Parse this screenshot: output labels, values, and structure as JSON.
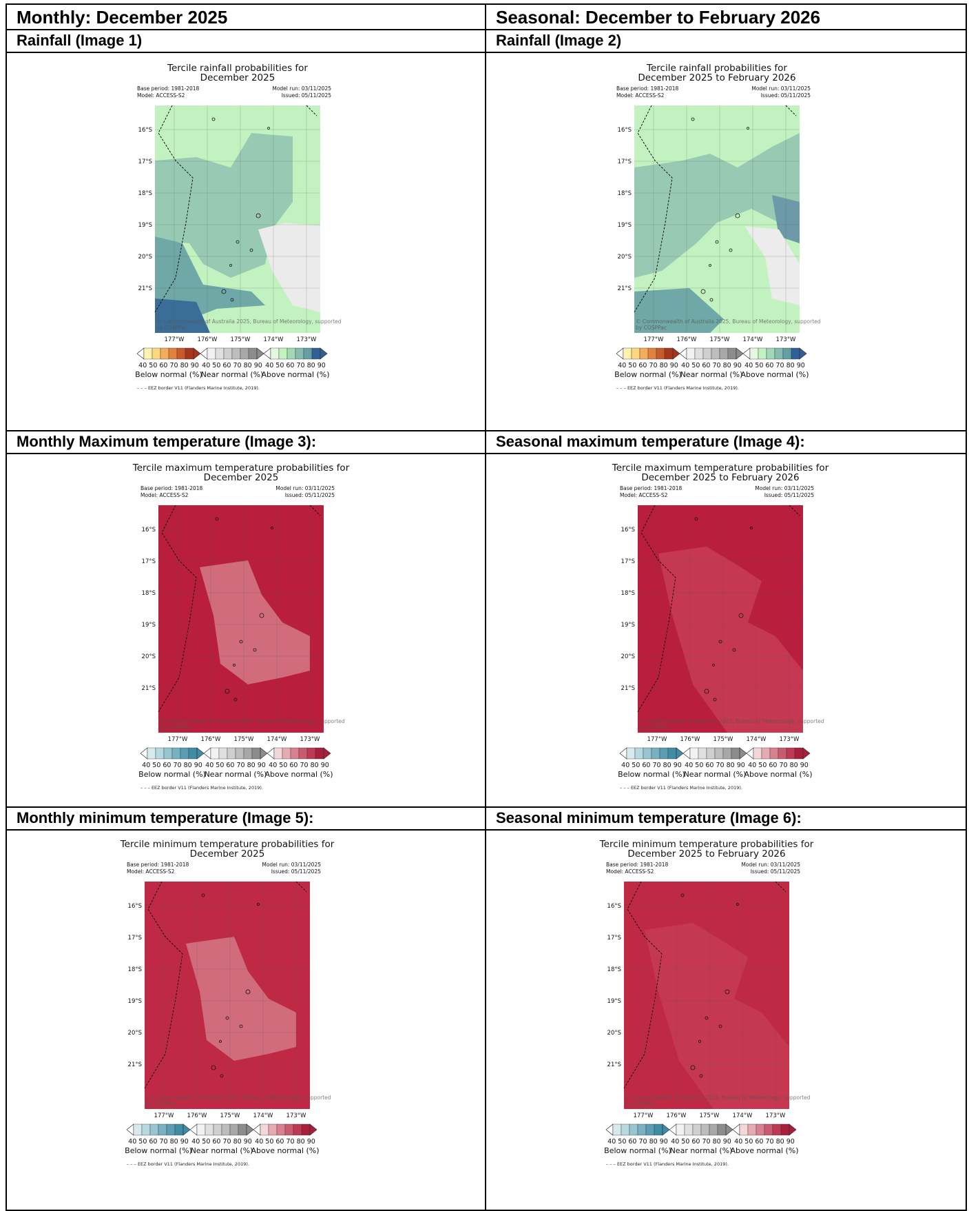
{
  "header": {
    "left_title": "Monthly: December 2025",
    "right_title": "Seasonal: December to February 2026"
  },
  "sections": {
    "rainfall_monthly": "Rainfall (Image 1)",
    "rainfall_seasonal": "Rainfall (Image 2)",
    "tmax_monthly": "Monthly Maximum temperature (Image 3):",
    "tmax_seasonal": "Seasonal maximum temperature (Image 4):",
    "tmin_monthly": "Monthly minimum temperature (Image 5):",
    "tmin_seasonal": "Seasonal minimum temperature (Image 6):"
  },
  "maps": [
    {
      "title1": "Tercile rainfall probabilities for",
      "title2": "December 2025",
      "kind": "rain_m"
    },
    {
      "title1": "Tercile rainfall probabilities for",
      "title2": "December 2025 to February 2026",
      "kind": "rain_s"
    },
    {
      "title1": "Tercile maximum temperature probabilities for",
      "title2": "December 2025",
      "kind": "tmax_m"
    },
    {
      "title1": "Tercile maximum temperature probabilities for",
      "title2": "December 2025 to February 2026",
      "kind": "tmax_s"
    },
    {
      "title1": "Tercile minimum temperature probabilities for",
      "title2": "December 2025",
      "kind": "tmin_m"
    },
    {
      "title1": "Tercile minimum temperature probabilities for",
      "title2": "December 2025 to February 2026",
      "kind": "tmin_s"
    }
  ],
  "common": {
    "base_period": "Base period: 1981-2018",
    "model": "Model: ACCESS-S2",
    "model_run": "Model run: 03/11/2025",
    "issued": "Issued: 05/11/2025",
    "lat_ticks": [
      "16°S",
      "17°S",
      "18°S",
      "19°S",
      "20°S",
      "21°S"
    ],
    "lon_ticks": [
      "177°W",
      "176°W",
      "175°W",
      "174°W",
      "173°W"
    ],
    "copyright_line1": "© Commonwealth of Australia 2025, Bureau of Meteorology, supported",
    "copyright_line2": "by COSPPac",
    "cb_numbers": "40 50 60 70 80 90",
    "cb_below": "Below normal (%)",
    "cb_near": "Near normal (%)",
    "cb_above": "Above normal (%)",
    "eez": "– – – EEZ border V11 (Flanders Marine Institute, 2019)."
  },
  "colors": {
    "rain_below": [
      "#fff3b0",
      "#fdd680",
      "#f4ad5c",
      "#e08140",
      "#c85a2a",
      "#a8361b"
    ],
    "rain_above": [
      "#e4f8e0",
      "#c2f2c0",
      "#a3d8b6",
      "#86bcae",
      "#62a0a4",
      "#2f5f96"
    ],
    "near": [
      "#f2f2f2",
      "#e0e0e0",
      "#cfcfcf",
      "#bdbdbd",
      "#a8a8a8",
      "#8c8c8c"
    ],
    "temp_below": [
      "#d6eaee",
      "#b6d8e0",
      "#97c5d1",
      "#77b1c2",
      "#5a9eb3",
      "#3e8ca6"
    ],
    "temp_above": [
      "#f3d6da",
      "#e6aab3",
      "#d8808f",
      "#ca5a6f",
      "#bd3954",
      "#a91e3a"
    ]
  }
}
